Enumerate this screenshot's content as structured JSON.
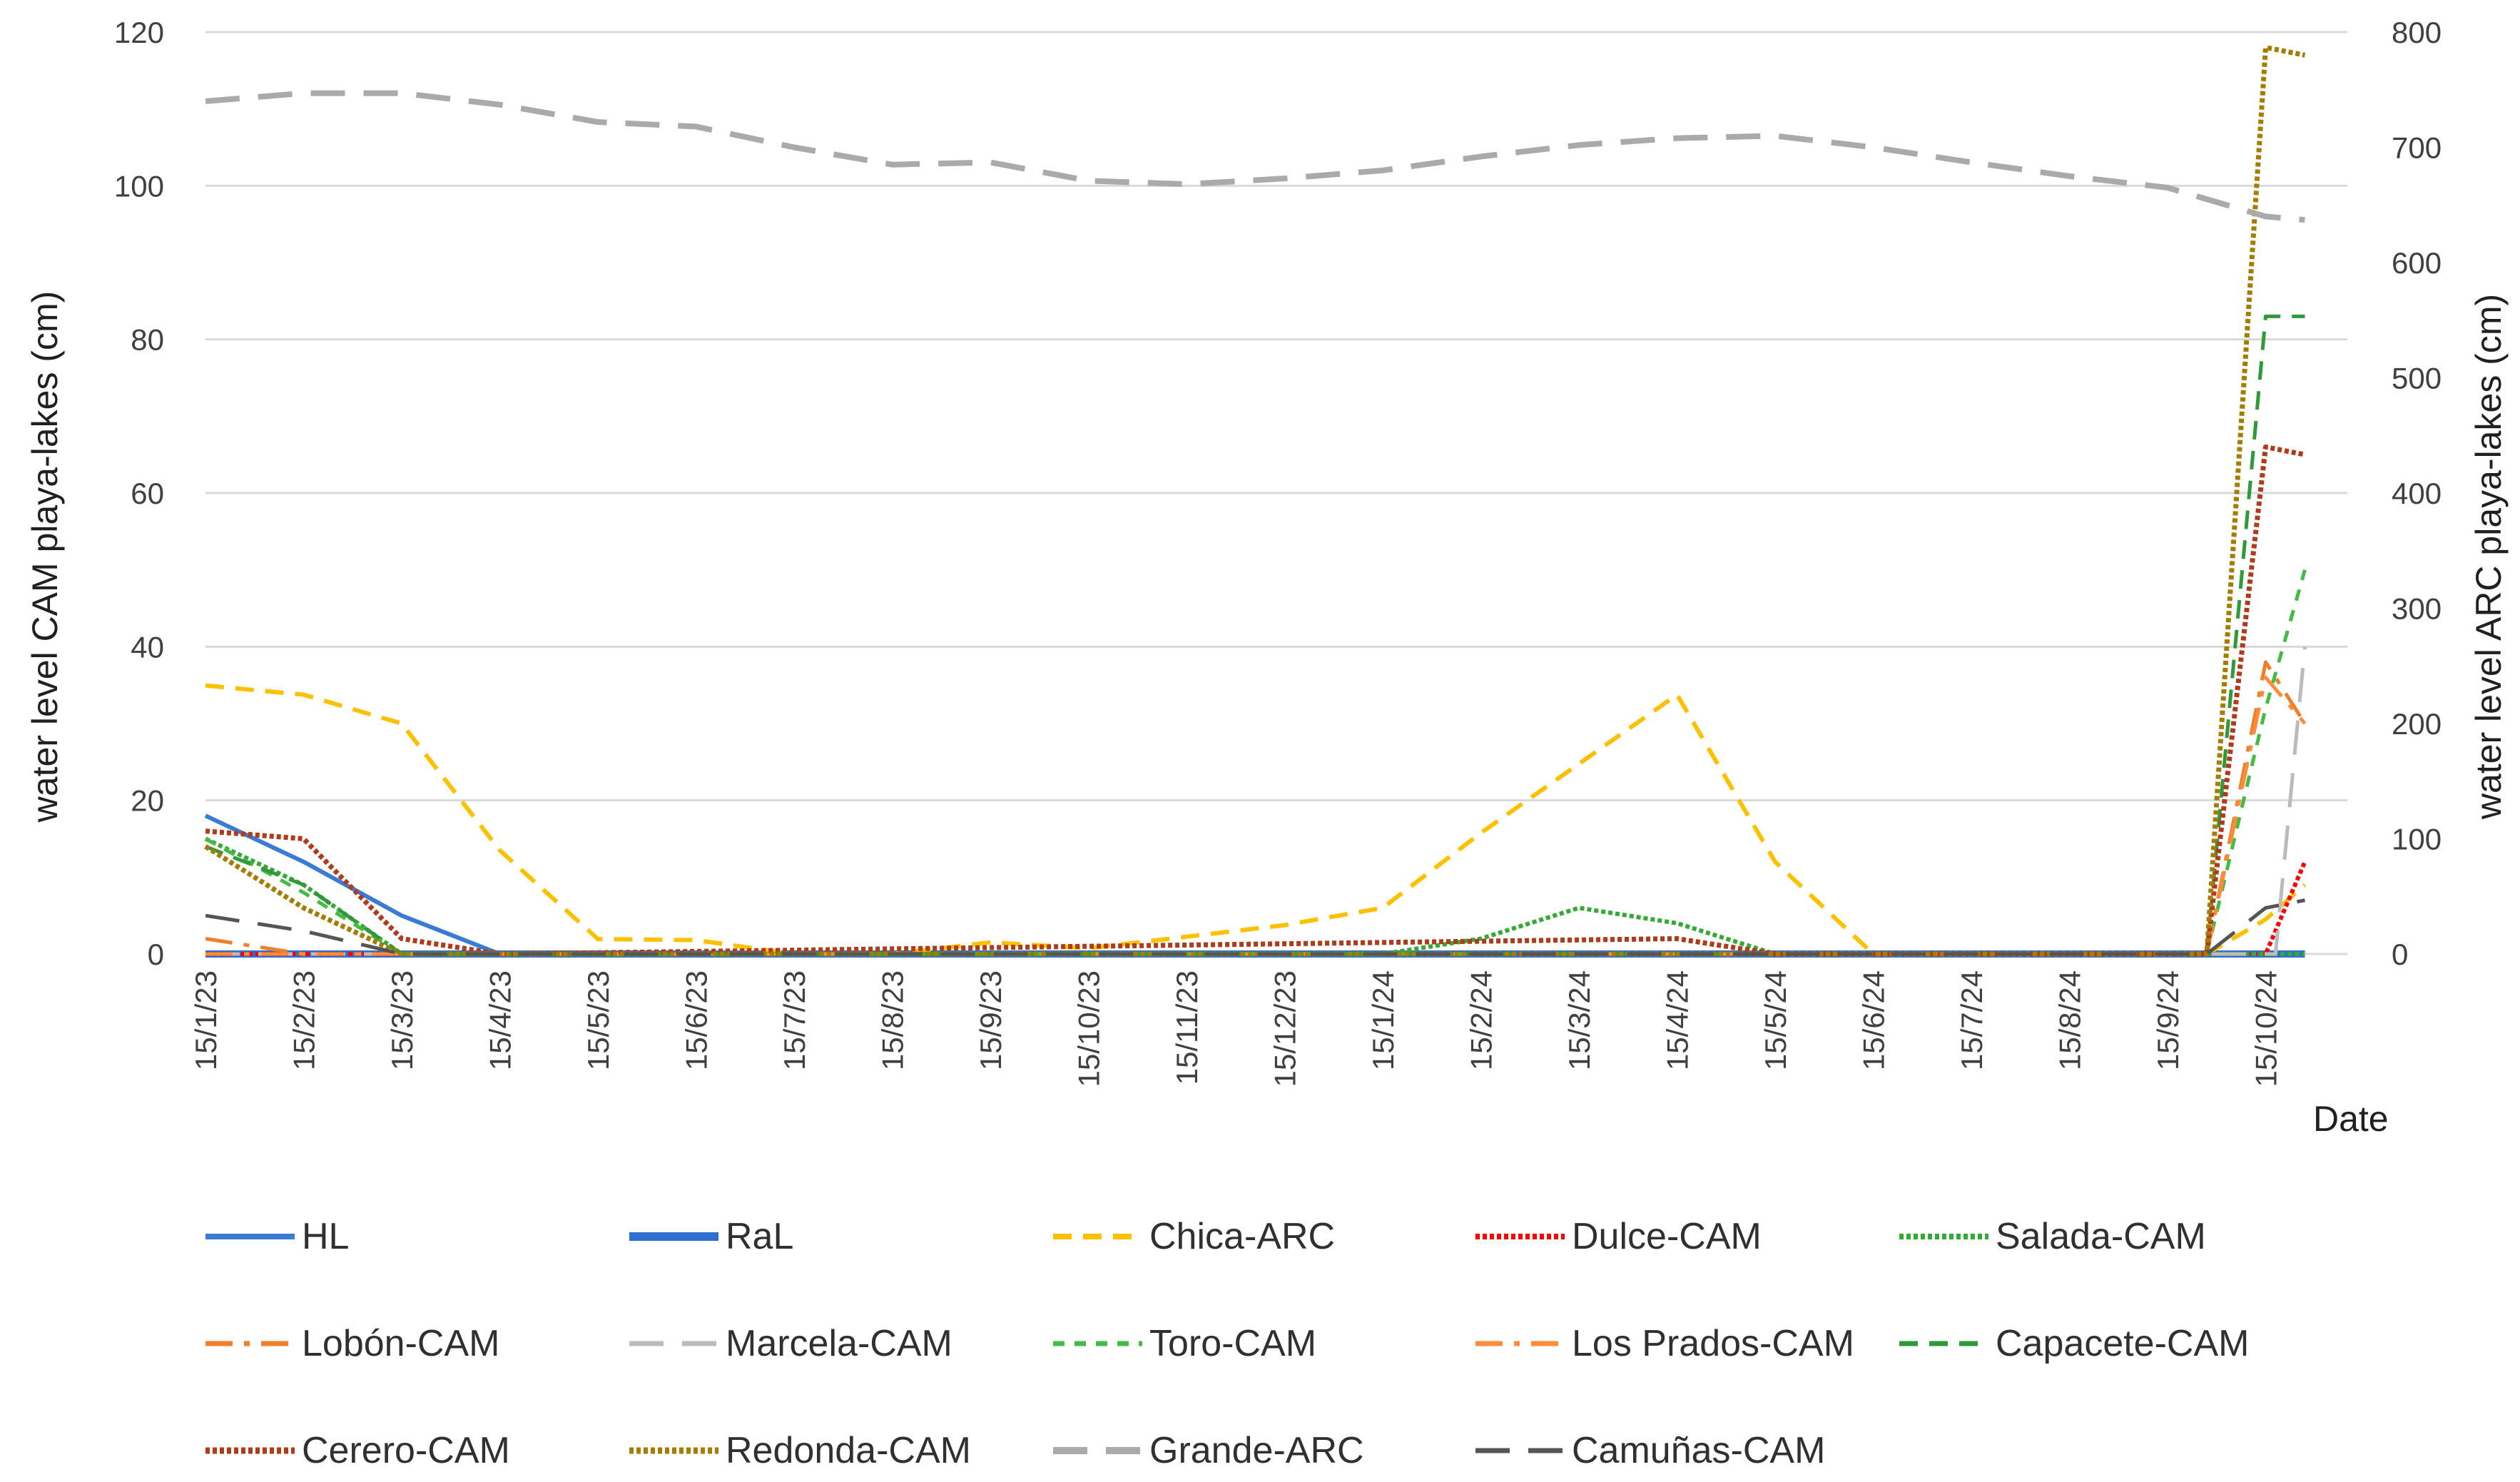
{
  "chart_data": {
    "type": "line",
    "title": "",
    "xlabel": "Date",
    "ylabel": "water level CAM playa-lakes (cm)",
    "y2label": "water level ARC playa-lakes (cm)",
    "ylim": [
      0,
      120
    ],
    "y2lim": [
      0,
      800
    ],
    "yticks": [
      "0",
      "20",
      "40",
      "60",
      "80",
      "100",
      "120"
    ],
    "y2ticks": [
      "0",
      "100",
      "200",
      "300",
      "400",
      "500",
      "600",
      "700",
      "800"
    ],
    "categories": [
      "15/1/23",
      "15/2/23",
      "15/3/23",
      "15/4/23",
      "15/5/23",
      "15/6/23",
      "15/7/23",
      "15/8/23",
      "15/9/23",
      "15/10/23",
      "15/11/23",
      "15/12/23",
      "15/1/24",
      "15/2/24",
      "15/3/24",
      "15/4/24",
      "15/5/24",
      "15/6/24",
      "15/7/24",
      "15/8/24",
      "15/9/24",
      "15/10/24"
    ],
    "gridlines": true,
    "legend_position": "bottom",
    "series": [
      {
        "name": "HL",
        "axis": "left",
        "color": "#3a7bd5",
        "width": 6,
        "dash": "solid",
        "x": [
          0,
          1,
          2,
          3,
          4,
          20.4,
          21.4
        ],
        "y": [
          18,
          12,
          5,
          0,
          0,
          0,
          0
        ]
      },
      {
        "name": "RaL",
        "axis": "left",
        "color": "#2f6fcf",
        "width": 10,
        "dash": "solid",
        "x": [
          0,
          21.4
        ],
        "y": [
          0,
          0
        ]
      },
      {
        "name": "Chica-ARC",
        "axis": "right",
        "color": "#ffc000",
        "width": 6,
        "dash": "dash",
        "x": [
          0,
          1,
          2,
          3,
          4,
          5,
          6,
          7,
          8,
          9,
          10,
          11,
          12,
          13,
          14,
          15,
          16,
          17,
          18,
          19,
          20,
          20.4,
          21,
          21.4
        ],
        "y": [
          233,
          225,
          200,
          90,
          13,
          12,
          0,
          0,
          10,
          5,
          15,
          25,
          40,
          105,
          165,
          225,
          80,
          0,
          0,
          0,
          0,
          0,
          30,
          60
        ]
      },
      {
        "name": "Dulce-CAM",
        "axis": "left",
        "color": "#ff0000",
        "width": 6,
        "dash": "dot",
        "x": [
          0,
          20.4,
          21,
          21.4
        ],
        "y": [
          0,
          0,
          0,
          12
        ]
      },
      {
        "name": "Salada-CAM",
        "axis": "left",
        "color": "#33aa33",
        "width": 6,
        "dash": "dot",
        "x": [
          0,
          1,
          2,
          3,
          12,
          13,
          14,
          15,
          16,
          20.4,
          21,
          21.4
        ],
        "y": [
          15,
          9,
          0,
          0,
          0,
          2,
          6,
          4,
          0,
          0,
          0,
          0
        ]
      },
      {
        "name": "Lobón-CAM",
        "axis": "left",
        "color": "#f07f2a",
        "width": 5,
        "dash": "dashdot",
        "x": [
          0,
          1,
          20.4,
          21,
          21.4
        ],
        "y": [
          2,
          0,
          0,
          38,
          30
        ]
      },
      {
        "name": "Marcela-CAM",
        "axis": "left",
        "color": "#bbbbbb",
        "width": 5,
        "dash": "longdash",
        "x": [
          0,
          20.4,
          21.1,
          21.4
        ],
        "y": [
          0,
          0,
          0,
          40
        ]
      },
      {
        "name": "Toro-CAM",
        "axis": "left",
        "color": "#44bb44",
        "width": 5,
        "dash": "shortdash",
        "x": [
          0,
          1,
          2,
          20.4,
          21,
          21.4
        ],
        "y": [
          15,
          8,
          0,
          0,
          32,
          50
        ]
      },
      {
        "name": "Los Prados-CAM",
        "axis": "left",
        "color": "#ff8c3a",
        "width": 5,
        "dash": "dashdot",
        "x": [
          0,
          20.4,
          21,
          21.4
        ],
        "y": [
          0,
          0,
          36,
          30
        ]
      },
      {
        "name": "Capacete-CAM",
        "axis": "left",
        "color": "#2e9a3a",
        "width": 5,
        "dash": "dash",
        "x": [
          0,
          1,
          2,
          20.4,
          21,
          21.4
        ],
        "y": [
          14,
          9,
          0,
          0,
          83,
          83
        ]
      },
      {
        "name": "Cerero-CAM",
        "axis": "left",
        "color": "#b03a1a",
        "width": 7,
        "dash": "dot",
        "x": [
          0,
          1,
          2,
          3,
          15,
          16,
          20.4,
          21,
          21.4
        ],
        "y": [
          16,
          15,
          2,
          0,
          2,
          0,
          0,
          66,
          65
        ]
      },
      {
        "name": "Redonda-CAM",
        "axis": "left",
        "color": "#a67c00",
        "width": 7,
        "dash": "dot",
        "x": [
          0,
          1,
          2,
          20.4,
          21,
          21.4
        ],
        "y": [
          14,
          6,
          0,
          0,
          118,
          117
        ]
      },
      {
        "name": "Grande-ARC",
        "axis": "right",
        "color": "#aaaaaa",
        "width": 8,
        "dash": "longdash",
        "x": [
          0,
          1,
          2,
          3,
          4,
          5,
          6,
          7,
          8,
          9,
          10,
          11,
          12,
          13,
          14,
          15,
          16,
          17,
          18,
          19,
          20,
          21,
          21.4
        ],
        "y": [
          740,
          747,
          747,
          737,
          722,
          718,
          700,
          685,
          687,
          671,
          668,
          673,
          680,
          692,
          702,
          708,
          710,
          700,
          687,
          675,
          665,
          640,
          637
        ]
      },
      {
        "name": "Camuñas-CAM",
        "axis": "left",
        "color": "#555555",
        "width": 5,
        "dash": "longdash",
        "x": [
          0,
          1,
          2,
          20.4,
          21,
          21.4
        ],
        "y": [
          5,
          3,
          0,
          0,
          6,
          7
        ]
      }
    ]
  }
}
